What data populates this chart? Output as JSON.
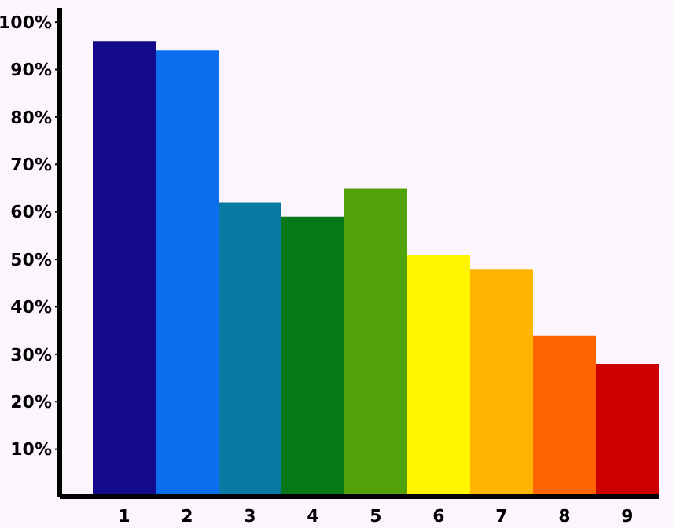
{
  "chart_data": {
    "type": "bar",
    "categories": [
      "1",
      "2",
      "3",
      "4",
      "5",
      "6",
      "7",
      "8",
      "9"
    ],
    "values": [
      96,
      94,
      62,
      59,
      65,
      51,
      48,
      34,
      28
    ],
    "colors": [
      "#140a8c",
      "#0a6eee",
      "#087aa4",
      "#067818",
      "#52a20a",
      "#fff500",
      "#ffb400",
      "#ff6400",
      "#cc0000"
    ],
    "ylim": [
      0,
      103
    ],
    "yticks": [
      {
        "value": 10,
        "label": "10%"
      },
      {
        "value": 20,
        "label": "20%"
      },
      {
        "value": 30,
        "label": "30%"
      },
      {
        "value": 40,
        "label": "40%"
      },
      {
        "value": 50,
        "label": "50%"
      },
      {
        "value": 60,
        "label": "60%"
      },
      {
        "value": 70,
        "label": "70%"
      },
      {
        "value": 80,
        "label": "80%"
      },
      {
        "value": 90,
        "label": "90%"
      },
      {
        "value": 100,
        "label": "100%"
      }
    ],
    "grid": false,
    "legend": false
  }
}
